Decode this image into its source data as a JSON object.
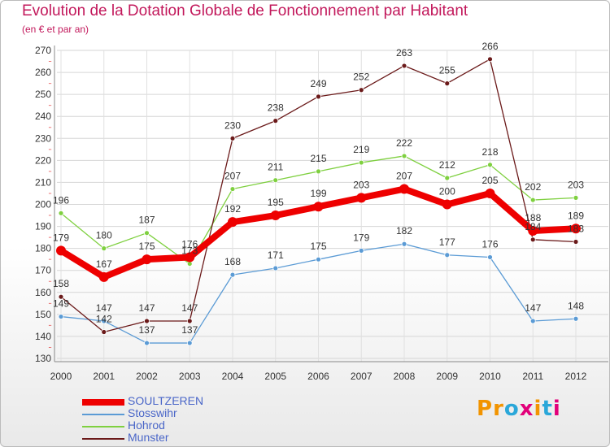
{
  "title": "Evolution de la Dotation Globale de Fonctionnement par Habitant",
  "subtitle": "(en € et par an)",
  "logo": {
    "text": "Proxiti",
    "colors": [
      "#f29400",
      "#f29400",
      "#2aa7d9",
      "#e2007a",
      "#f29400",
      "#2aa7d9",
      "#e2007a"
    ]
  },
  "chart_data": {
    "type": "line",
    "title": "Evolution de la Dotation Globale de Fonctionnement par Habitant",
    "subtitle": "(en € et par an)",
    "xlabel": "",
    "ylabel": "",
    "ylim": [
      130,
      270
    ],
    "yticks": [
      130,
      140,
      150,
      160,
      170,
      180,
      190,
      200,
      210,
      220,
      230,
      240,
      250,
      260,
      270
    ],
    "grid": true,
    "legend_position": "bottom-left",
    "categories": [
      "2000",
      "2001",
      "2002",
      "2003",
      "2004",
      "2005",
      "2006",
      "2007",
      "2008",
      "2009",
      "2010",
      "2011",
      "2012"
    ],
    "series": [
      {
        "name": "SOULTZEREN",
        "color": "#ee0000",
        "emphasis": true,
        "values": [
          179,
          167,
          175,
          176,
          192,
          195,
          199,
          203,
          207,
          200,
          205,
          188,
          189
        ]
      },
      {
        "name": "Stosswihr",
        "color": "#5b9bd5",
        "emphasis": false,
        "values": [
          149,
          147,
          137,
          137,
          168,
          171,
          175,
          179,
          182,
          177,
          176,
          147,
          148
        ]
      },
      {
        "name": "Hohrod",
        "color": "#7fd040",
        "emphasis": false,
        "values": [
          196,
          180,
          187,
          173,
          207,
          211,
          215,
          219,
          222,
          212,
          218,
          202,
          203
        ]
      },
      {
        "name": "Munster",
        "color": "#6b1a1a",
        "emphasis": false,
        "values": [
          158,
          142,
          147,
          147,
          230,
          238,
          249,
          252,
          263,
          255,
          266,
          184,
          183
        ]
      }
    ],
    "data_labels": [
      {
        "series": "SOULTZEREN",
        "labels": [
          "179",
          "167",
          "175",
          "176",
          "192",
          "195",
          "199",
          "203",
          "207",
          "200",
          "205",
          "188",
          "189"
        ]
      },
      {
        "series": "Stosswihr",
        "labels": [
          "149",
          "147",
          "137",
          "137",
          "168",
          "171",
          "175",
          "179",
          "182",
          "177",
          "176",
          "147",
          "148"
        ]
      },
      {
        "series": "Hohrod",
        "labels": [
          "196",
          "180",
          "187",
          "173",
          "207",
          "211",
          "215",
          "219",
          "222",
          "212",
          "218",
          "202",
          "203"
        ]
      },
      {
        "series": "Munster",
        "labels": [
          "158",
          "142",
          "147",
          "147",
          "230",
          "238",
          "249",
          "252",
          "263",
          "255",
          "266",
          "184",
          "183"
        ]
      }
    ]
  }
}
